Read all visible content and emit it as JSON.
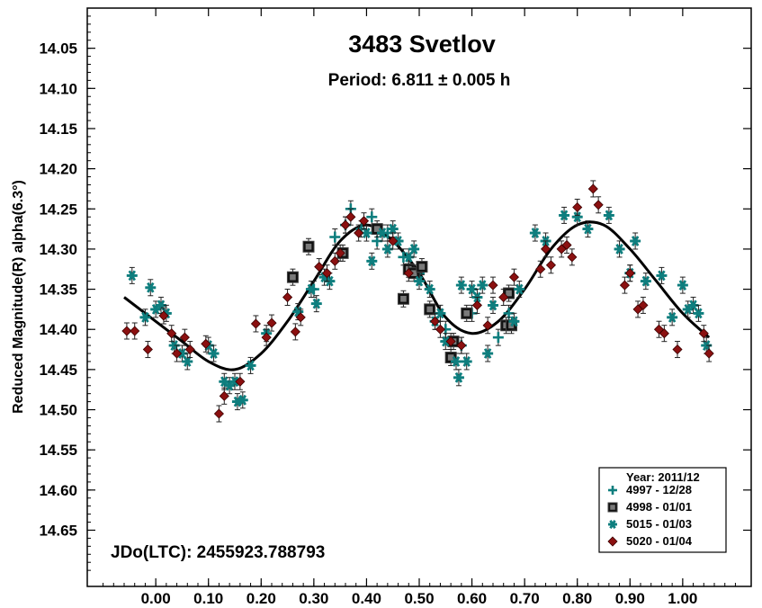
{
  "chart_data": {
    "type": "scatter",
    "title": "3483 Svetlov",
    "subtitle": "Period: 6.811 ± 0.005 h",
    "ylabel": "Reduced Magnitude(R) alpha(6.3°)",
    "xlabel": "",
    "xlim": [
      -0.13,
      1.13
    ],
    "ylim": [
      14.0,
      14.72
    ],
    "y_inverted": true,
    "x_ticks": [
      "0.00",
      "0.10",
      "0.20",
      "0.30",
      "0.40",
      "0.50",
      "0.60",
      "0.70",
      "0.80",
      "0.90",
      "1.00"
    ],
    "y_ticks": [
      "14.05",
      "14.10",
      "14.15",
      "14.20",
      "14.25",
      "14.30",
      "14.35",
      "14.40",
      "14.45",
      "14.50",
      "14.55",
      "14.60",
      "14.65"
    ],
    "annotation": "JDo(LTC): 2455923.788793",
    "legend": {
      "title": "Year: 2011/12",
      "position": "bottom-right",
      "entries": [
        "4997 - 12/28",
        "4998 - 01/01",
        "5015 - 01/03",
        "5020 - 01/04"
      ]
    },
    "fit_curve": {
      "x": [
        -0.06,
        0.0,
        0.05,
        0.1,
        0.15,
        0.2,
        0.25,
        0.3,
        0.35,
        0.4,
        0.45,
        0.5,
        0.55,
        0.6,
        0.65,
        0.7,
        0.75,
        0.8,
        0.85,
        0.9,
        0.95,
        1.0,
        1.05
      ],
      "y": [
        14.36,
        14.39,
        14.415,
        14.44,
        14.45,
        14.43,
        14.39,
        14.34,
        14.29,
        14.27,
        14.29,
        14.33,
        14.385,
        14.405,
        14.39,
        14.35,
        14.3,
        14.27,
        14.27,
        14.3,
        14.34,
        14.38,
        14.41
      ]
    },
    "series": [
      {
        "name": "4997 - 12/28",
        "marker": "plus",
        "color": "#0e7e7e",
        "points": [
          {
            "x": 0.34,
            "y": 14.285
          },
          {
            "x": 0.36,
            "y": 14.27
          },
          {
            "x": 0.37,
            "y": 14.25
          },
          {
            "x": 0.39,
            "y": 14.275
          },
          {
            "x": 0.41,
            "y": 14.26
          },
          {
            "x": 0.42,
            "y": 14.29
          },
          {
            "x": 0.44,
            "y": 14.28
          },
          {
            "x": 0.47,
            "y": 14.31
          },
          {
            "x": 0.5,
            "y": 14.33
          },
          {
            "x": 0.55,
            "y": 14.4
          },
          {
            "x": 0.58,
            "y": 14.42
          },
          {
            "x": 0.6,
            "y": 14.38
          },
          {
            "x": 0.65,
            "y": 14.41
          },
          {
            "x": 0.67,
            "y": 14.38
          },
          {
            "x": 0.3,
            "y": 14.35
          }
        ]
      },
      {
        "name": "4998 - 01/01",
        "marker": "square",
        "color": "#7a7a7a",
        "points": [
          {
            "x": 0.26,
            "y": 14.335
          },
          {
            "x": 0.29,
            "y": 14.297
          },
          {
            "x": 0.355,
            "y": 14.305
          },
          {
            "x": 0.42,
            "y": 14.275
          },
          {
            "x": 0.47,
            "y": 14.362
          },
          {
            "x": 0.48,
            "y": 14.325
          },
          {
            "x": 0.49,
            "y": 14.33
          },
          {
            "x": 0.505,
            "y": 14.322
          },
          {
            "x": 0.52,
            "y": 14.375
          },
          {
            "x": 0.56,
            "y": 14.435
          },
          {
            "x": 0.565,
            "y": 14.415
          },
          {
            "x": 0.59,
            "y": 14.38
          },
          {
            "x": 0.665,
            "y": 14.395
          },
          {
            "x": 0.67,
            "y": 14.355
          },
          {
            "x": 0.675,
            "y": 14.395
          }
        ]
      },
      {
        "name": "5015 - 01/03",
        "marker": "star",
        "color": "#0e7e7e",
        "points": [
          {
            "x": -0.045,
            "y": 14.333
          },
          {
            "x": -0.02,
            "y": 14.385
          },
          {
            "x": -0.01,
            "y": 14.348
          },
          {
            "x": 0.0,
            "y": 14.375
          },
          {
            "x": 0.01,
            "y": 14.37
          },
          {
            "x": 0.02,
            "y": 14.38
          },
          {
            "x": 0.035,
            "y": 14.42
          },
          {
            "x": 0.05,
            "y": 14.43
          },
          {
            "x": 0.06,
            "y": 14.44
          },
          {
            "x": 0.1,
            "y": 14.42
          },
          {
            "x": 0.11,
            "y": 14.43
          },
          {
            "x": 0.13,
            "y": 14.465
          },
          {
            "x": 0.14,
            "y": 14.47
          },
          {
            "x": 0.15,
            "y": 14.465
          },
          {
            "x": 0.155,
            "y": 14.49
          },
          {
            "x": 0.165,
            "y": 14.488
          },
          {
            "x": 0.18,
            "y": 14.445
          },
          {
            "x": 0.21,
            "y": 14.405
          },
          {
            "x": 0.27,
            "y": 14.378
          },
          {
            "x": 0.295,
            "y": 14.35
          },
          {
            "x": 0.305,
            "y": 14.368
          },
          {
            "x": 0.32,
            "y": 14.335
          },
          {
            "x": 0.33,
            "y": 14.34
          },
          {
            "x": 0.4,
            "y": 14.28
          },
          {
            "x": 0.41,
            "y": 14.315
          },
          {
            "x": 0.43,
            "y": 14.28
          },
          {
            "x": 0.44,
            "y": 14.3
          },
          {
            "x": 0.45,
            "y": 14.275
          },
          {
            "x": 0.46,
            "y": 14.29
          },
          {
            "x": 0.48,
            "y": 14.31
          },
          {
            "x": 0.49,
            "y": 14.3
          },
          {
            "x": 0.5,
            "y": 14.34
          },
          {
            "x": 0.52,
            "y": 14.35
          },
          {
            "x": 0.53,
            "y": 14.39
          },
          {
            "x": 0.54,
            "y": 14.38
          },
          {
            "x": 0.55,
            "y": 14.415
          },
          {
            "x": 0.57,
            "y": 14.44
          },
          {
            "x": 0.575,
            "y": 14.46
          },
          {
            "x": 0.58,
            "y": 14.345
          },
          {
            "x": 0.59,
            "y": 14.44
          },
          {
            "x": 0.6,
            "y": 14.35
          },
          {
            "x": 0.61,
            "y": 14.36
          },
          {
            "x": 0.62,
            "y": 14.345
          },
          {
            "x": 0.63,
            "y": 14.43
          },
          {
            "x": 0.64,
            "y": 14.37
          },
          {
            "x": 0.68,
            "y": 14.39
          },
          {
            "x": 0.69,
            "y": 14.35
          },
          {
            "x": 0.72,
            "y": 14.28
          },
          {
            "x": 0.74,
            "y": 14.29
          },
          {
            "x": 0.775,
            "y": 14.258
          },
          {
            "x": 0.8,
            "y": 14.26
          },
          {
            "x": 0.82,
            "y": 14.275
          },
          {
            "x": 0.86,
            "y": 14.258
          },
          {
            "x": 0.88,
            "y": 14.3
          },
          {
            "x": 0.9,
            "y": 14.33
          },
          {
            "x": 0.91,
            "y": 14.29
          },
          {
            "x": 0.93,
            "y": 14.34
          },
          {
            "x": 0.96,
            "y": 14.333
          },
          {
            "x": 0.98,
            "y": 14.385
          },
          {
            "x": 1.0,
            "y": 14.345
          },
          {
            "x": 1.01,
            "y": 14.375
          },
          {
            "x": 1.02,
            "y": 14.37
          },
          {
            "x": 1.03,
            "y": 14.38
          },
          {
            "x": 1.045,
            "y": 14.42
          }
        ]
      },
      {
        "name": "5020 - 01/04",
        "marker": "diamond",
        "color": "#8b1010",
        "points": [
          {
            "x": -0.055,
            "y": 14.402
          },
          {
            "x": -0.04,
            "y": 14.402
          },
          {
            "x": -0.015,
            "y": 14.425
          },
          {
            "x": 0.015,
            "y": 14.383
          },
          {
            "x": 0.03,
            "y": 14.405
          },
          {
            "x": 0.04,
            "y": 14.43
          },
          {
            "x": 0.055,
            "y": 14.41
          },
          {
            "x": 0.065,
            "y": 14.425
          },
          {
            "x": 0.095,
            "y": 14.418
          },
          {
            "x": 0.12,
            "y": 14.505
          },
          {
            "x": 0.13,
            "y": 14.483
          },
          {
            "x": 0.16,
            "y": 14.465
          },
          {
            "x": 0.19,
            "y": 14.393
          },
          {
            "x": 0.21,
            "y": 14.41
          },
          {
            "x": 0.22,
            "y": 14.392
          },
          {
            "x": 0.25,
            "y": 14.36
          },
          {
            "x": 0.265,
            "y": 14.403
          },
          {
            "x": 0.275,
            "y": 14.385
          },
          {
            "x": 0.31,
            "y": 14.322
          },
          {
            "x": 0.325,
            "y": 14.33
          },
          {
            "x": 0.34,
            "y": 14.315
          },
          {
            "x": 0.35,
            "y": 14.305
          },
          {
            "x": 0.36,
            "y": 14.27
          },
          {
            "x": 0.37,
            "y": 14.26
          },
          {
            "x": 0.385,
            "y": 14.28
          },
          {
            "x": 0.395,
            "y": 14.265
          },
          {
            "x": 0.45,
            "y": 14.29
          },
          {
            "x": 0.48,
            "y": 14.33
          },
          {
            "x": 0.53,
            "y": 14.39
          },
          {
            "x": 0.54,
            "y": 14.4
          },
          {
            "x": 0.56,
            "y": 14.415
          },
          {
            "x": 0.58,
            "y": 14.42
          },
          {
            "x": 0.61,
            "y": 14.37
          },
          {
            "x": 0.63,
            "y": 14.395
          },
          {
            "x": 0.64,
            "y": 14.345
          },
          {
            "x": 0.66,
            "y": 14.36
          },
          {
            "x": 0.68,
            "y": 14.335
          },
          {
            "x": 0.73,
            "y": 14.325
          },
          {
            "x": 0.74,
            "y": 14.3
          },
          {
            "x": 0.75,
            "y": 14.32
          },
          {
            "x": 0.77,
            "y": 14.3
          },
          {
            "x": 0.78,
            "y": 14.295
          },
          {
            "x": 0.79,
            "y": 14.31
          },
          {
            "x": 0.8,
            "y": 14.248
          },
          {
            "x": 0.83,
            "y": 14.225
          },
          {
            "x": 0.84,
            "y": 14.245
          },
          {
            "x": 0.89,
            "y": 14.345
          },
          {
            "x": 0.9,
            "y": 14.33
          },
          {
            "x": 0.915,
            "y": 14.375
          },
          {
            "x": 0.925,
            "y": 14.37
          },
          {
            "x": 0.955,
            "y": 14.4
          },
          {
            "x": 0.965,
            "y": 14.405
          },
          {
            "x": 0.99,
            "y": 14.425
          },
          {
            "x": 1.04,
            "y": 14.405
          },
          {
            "x": 1.05,
            "y": 14.43
          }
        ]
      }
    ]
  }
}
